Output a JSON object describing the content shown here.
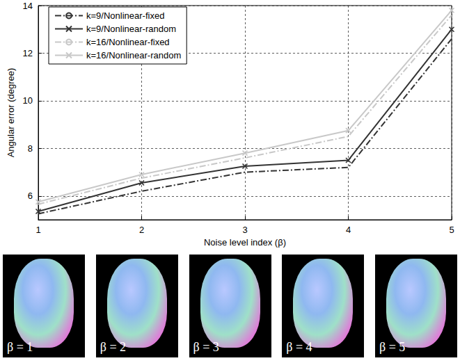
{
  "chart_data": {
    "type": "line",
    "xlabel": "Noise level index (β)",
    "ylabel": "Angular error (degree)",
    "xlim": [
      1,
      5
    ],
    "xticks": [
      1,
      2,
      3,
      4,
      5
    ],
    "ylim": [
      5,
      14
    ],
    "yticks": [
      6,
      8,
      10,
      12,
      14
    ],
    "grid": true,
    "legend": "upper left",
    "series": [
      {
        "name": "k=9/Nonlinear-fixed",
        "color": "#333333",
        "line_style": "dashdot",
        "marker": "none",
        "x": [
          1,
          2,
          3,
          4,
          5
        ],
        "values": [
          5.25,
          6.2,
          7.0,
          7.2,
          12.6
        ]
      },
      {
        "name": "k=9/Nonlinear-random",
        "color": "#333333",
        "line_style": "solid",
        "marker": "x",
        "x": [
          1,
          2,
          3,
          4,
          5
        ],
        "values": [
          5.35,
          6.55,
          7.25,
          7.5,
          13.0
        ]
      },
      {
        "name": "k=16/Nonlinear-fixed",
        "color": "#c8c8c8",
        "line_style": "dashdot",
        "marker": "none",
        "x": [
          1,
          2,
          3,
          4,
          5
        ],
        "values": [
          5.65,
          6.75,
          7.6,
          8.5,
          13.6
        ]
      },
      {
        "name": "k=16/Nonlinear-random",
        "color": "#c8c8c8",
        "line_style": "solid",
        "marker": "x",
        "x": [
          1,
          2,
          3,
          4,
          5
        ],
        "values": [
          5.75,
          6.9,
          7.8,
          8.75,
          13.8
        ]
      }
    ],
    "image_labels": [
      "β = 1",
      "β = 2",
      "β = 3",
      "β = 4",
      "β = 5"
    ]
  }
}
